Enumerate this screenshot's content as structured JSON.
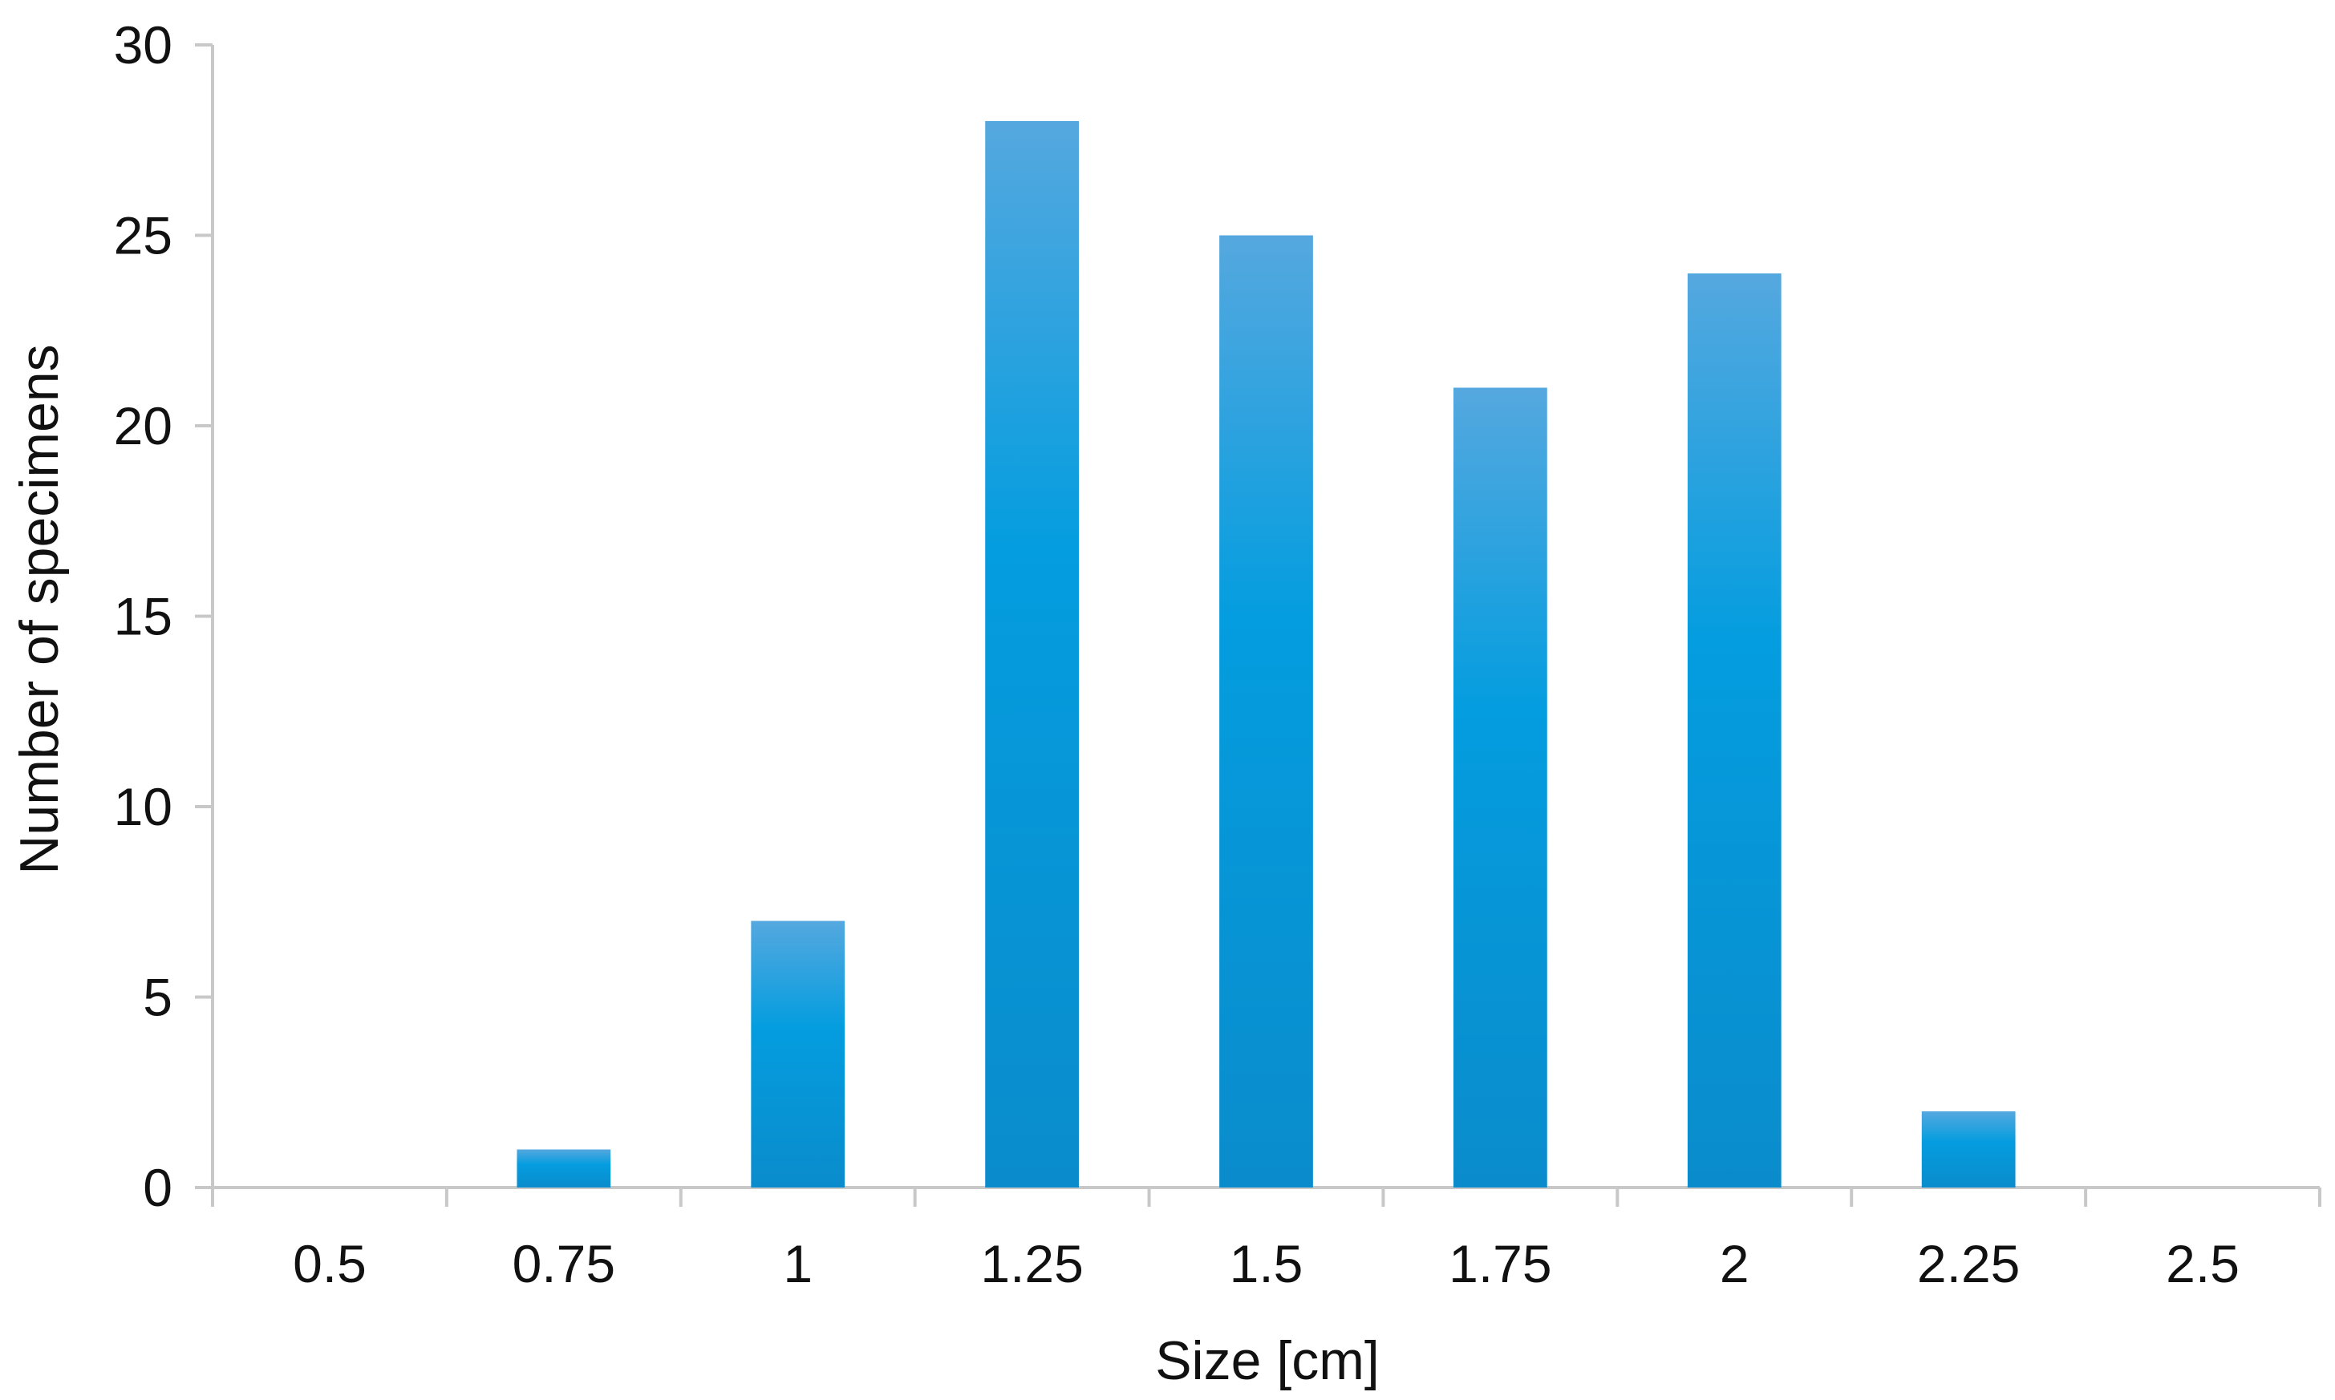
{
  "chart_data": {
    "type": "bar",
    "title": "",
    "xlabel": "Size [cm]",
    "ylabel": "Number of specimens",
    "categories": [
      "0.5",
      "0.75",
      "1",
      "1.25",
      "1.5",
      "1.75",
      "2",
      "2.25",
      "2.5"
    ],
    "values": [
      0,
      1,
      7,
      28,
      25,
      21,
      24,
      2,
      0
    ],
    "ylim": [
      0,
      30
    ],
    "yticks": [
      0,
      5,
      10,
      15,
      20,
      25,
      30
    ],
    "grid": false,
    "legend": "none",
    "colors": {
      "bar_top": "#55a8df",
      "bar_mid": "#049ddf",
      "bar_bottom": "#0a8ccc",
      "axis": "#c8c8c8"
    }
  }
}
